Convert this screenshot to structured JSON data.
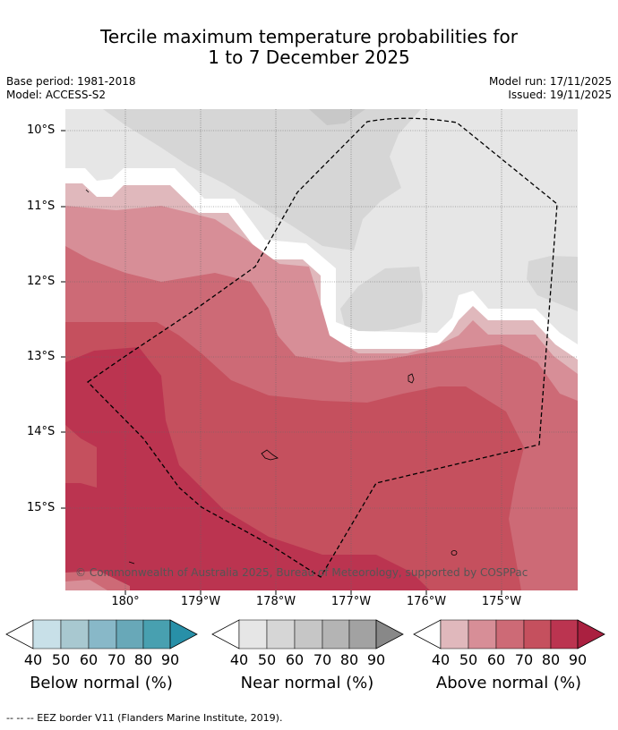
{
  "title": {
    "line1": "Tercile maximum temperature probabilities for",
    "line2": "1 to 7 December 2025"
  },
  "meta": {
    "base_period": "Base period: 1981-2018",
    "model": "Model: ACCESS-S2",
    "model_run": "Model run: 17/11/2025",
    "issued": "Issued: 19/11/2025"
  },
  "map": {
    "lat_labels": [
      "10°S",
      "11°S",
      "12°S",
      "13°S",
      "14°S",
      "15°S"
    ],
    "lon_labels": [
      "180°",
      "179°W",
      "178°W",
      "177°W",
      "176°W",
      "175°W"
    ],
    "copyright": "© Commonwealth of Australia 2025, Bureau of Meteorology, supported by COSPPac"
  },
  "colorbars": [
    {
      "name": "below",
      "label": "Below normal (%)",
      "ticks": [
        "40",
        "50",
        "60",
        "70",
        "80",
        "90"
      ],
      "colors": [
        "#c8e0e8",
        "#a8c8d0",
        "#88b8c8",
        "#68a8b8",
        "#48a0b0",
        "#2890a8"
      ]
    },
    {
      "name": "near",
      "label": "Near normal (%)",
      "ticks": [
        "40",
        "50",
        "60",
        "70",
        "80",
        "90"
      ],
      "colors": [
        "#e6e6e6",
        "#d6d6d6",
        "#c6c6c6",
        "#b4b4b4",
        "#a2a2a2",
        "#888888"
      ]
    },
    {
      "name": "above",
      "label": "Above normal (%)",
      "ticks": [
        "40",
        "50",
        "60",
        "70",
        "80",
        "90"
      ],
      "colors": [
        "#e0b8bc",
        "#d78e97",
        "#cd6a76",
        "#c5505e",
        "#bb3450",
        "#aa2040"
      ]
    }
  ],
  "footer": "--  --  -- EEZ border V11 (Flanders Marine Institute, 2019)."
}
